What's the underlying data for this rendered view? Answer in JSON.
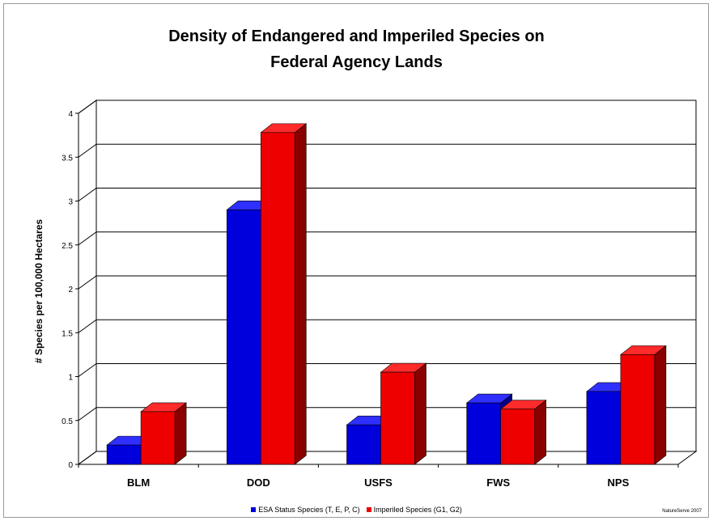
{
  "chart_data": {
    "type": "bar",
    "title": [
      "Density of Endangered and Imperiled Species on",
      "Federal Agency Lands"
    ],
    "ylabel": "# Species per 100,000 Hectares",
    "xlabel": "",
    "categories": [
      "BLM",
      "DOD",
      "USFS",
      "FWS",
      "NPS"
    ],
    "series": [
      {
        "name": "ESA Status Species (T, E, P, C)",
        "color": "#0000dd",
        "values": [
          0.22,
          2.9,
          0.45,
          0.7,
          0.83
        ]
      },
      {
        "name": "Imperiled Species (G1, G2)",
        "color": "#ee0000",
        "values": [
          0.6,
          3.78,
          1.05,
          0.63,
          1.25
        ]
      }
    ],
    "ylim": [
      0,
      4
    ],
    "yticks": [
      "0",
      "0.5",
      "1",
      "1.5",
      "2",
      "2.5",
      "3",
      "3.5",
      "4"
    ],
    "grid": true,
    "legend_position": "bottom",
    "style": "3d-bars"
  },
  "credit": "NatureServe 2007"
}
